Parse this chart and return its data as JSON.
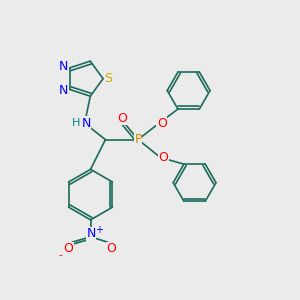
{
  "background_color": "#ebebeb",
  "colors": {
    "N": "#0000ff",
    "O": "#ff0000",
    "S": "#ccaa00",
    "P": "#cc8800",
    "H": "#008888",
    "bond": "#1a6b5a"
  }
}
